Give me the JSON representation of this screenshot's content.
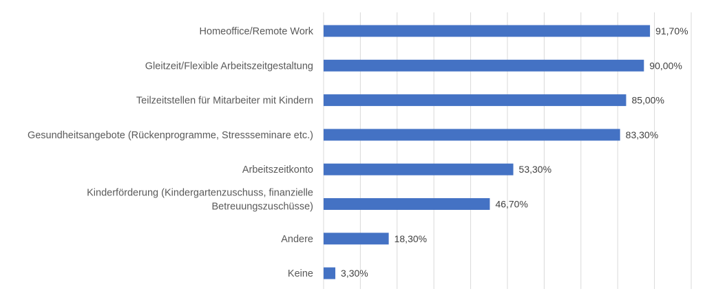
{
  "chart_data": {
    "type": "bar",
    "orientation": "horizontal",
    "categories": [
      [
        "Homeoffice/Remote Work"
      ],
      [
        "Gleitzeit/Flexible Arbeitszeitgestaltung"
      ],
      [
        "Teilzeitstellen für Mitarbeiter mit Kindern"
      ],
      [
        "Gesundheitsangebote (Rückenprogramme, Stressseminare etc.)"
      ],
      [
        "Arbeitszeitkonto"
      ],
      [
        "Kinderförderung (Kindergartenzuschuss, finanzielle",
        "Betreuungszuschüsse)"
      ],
      [
        "Andere"
      ],
      [
        "Keine"
      ]
    ],
    "values": [
      91.7,
      90.0,
      85.0,
      83.3,
      53.3,
      46.7,
      18.3,
      3.3
    ],
    "value_labels": [
      "91,70%",
      "90,00%",
      "85,00%",
      "83,30%",
      "53,30%",
      "46,70%",
      "18,30%",
      "3,30%"
    ],
    "title": "",
    "xlabel": "",
    "ylabel": "",
    "xlim": [
      0,
      100
    ],
    "grid": "vertical",
    "legend": "none",
    "bar_color": "#4472C4",
    "grid_color": "#d9d9d9"
  }
}
